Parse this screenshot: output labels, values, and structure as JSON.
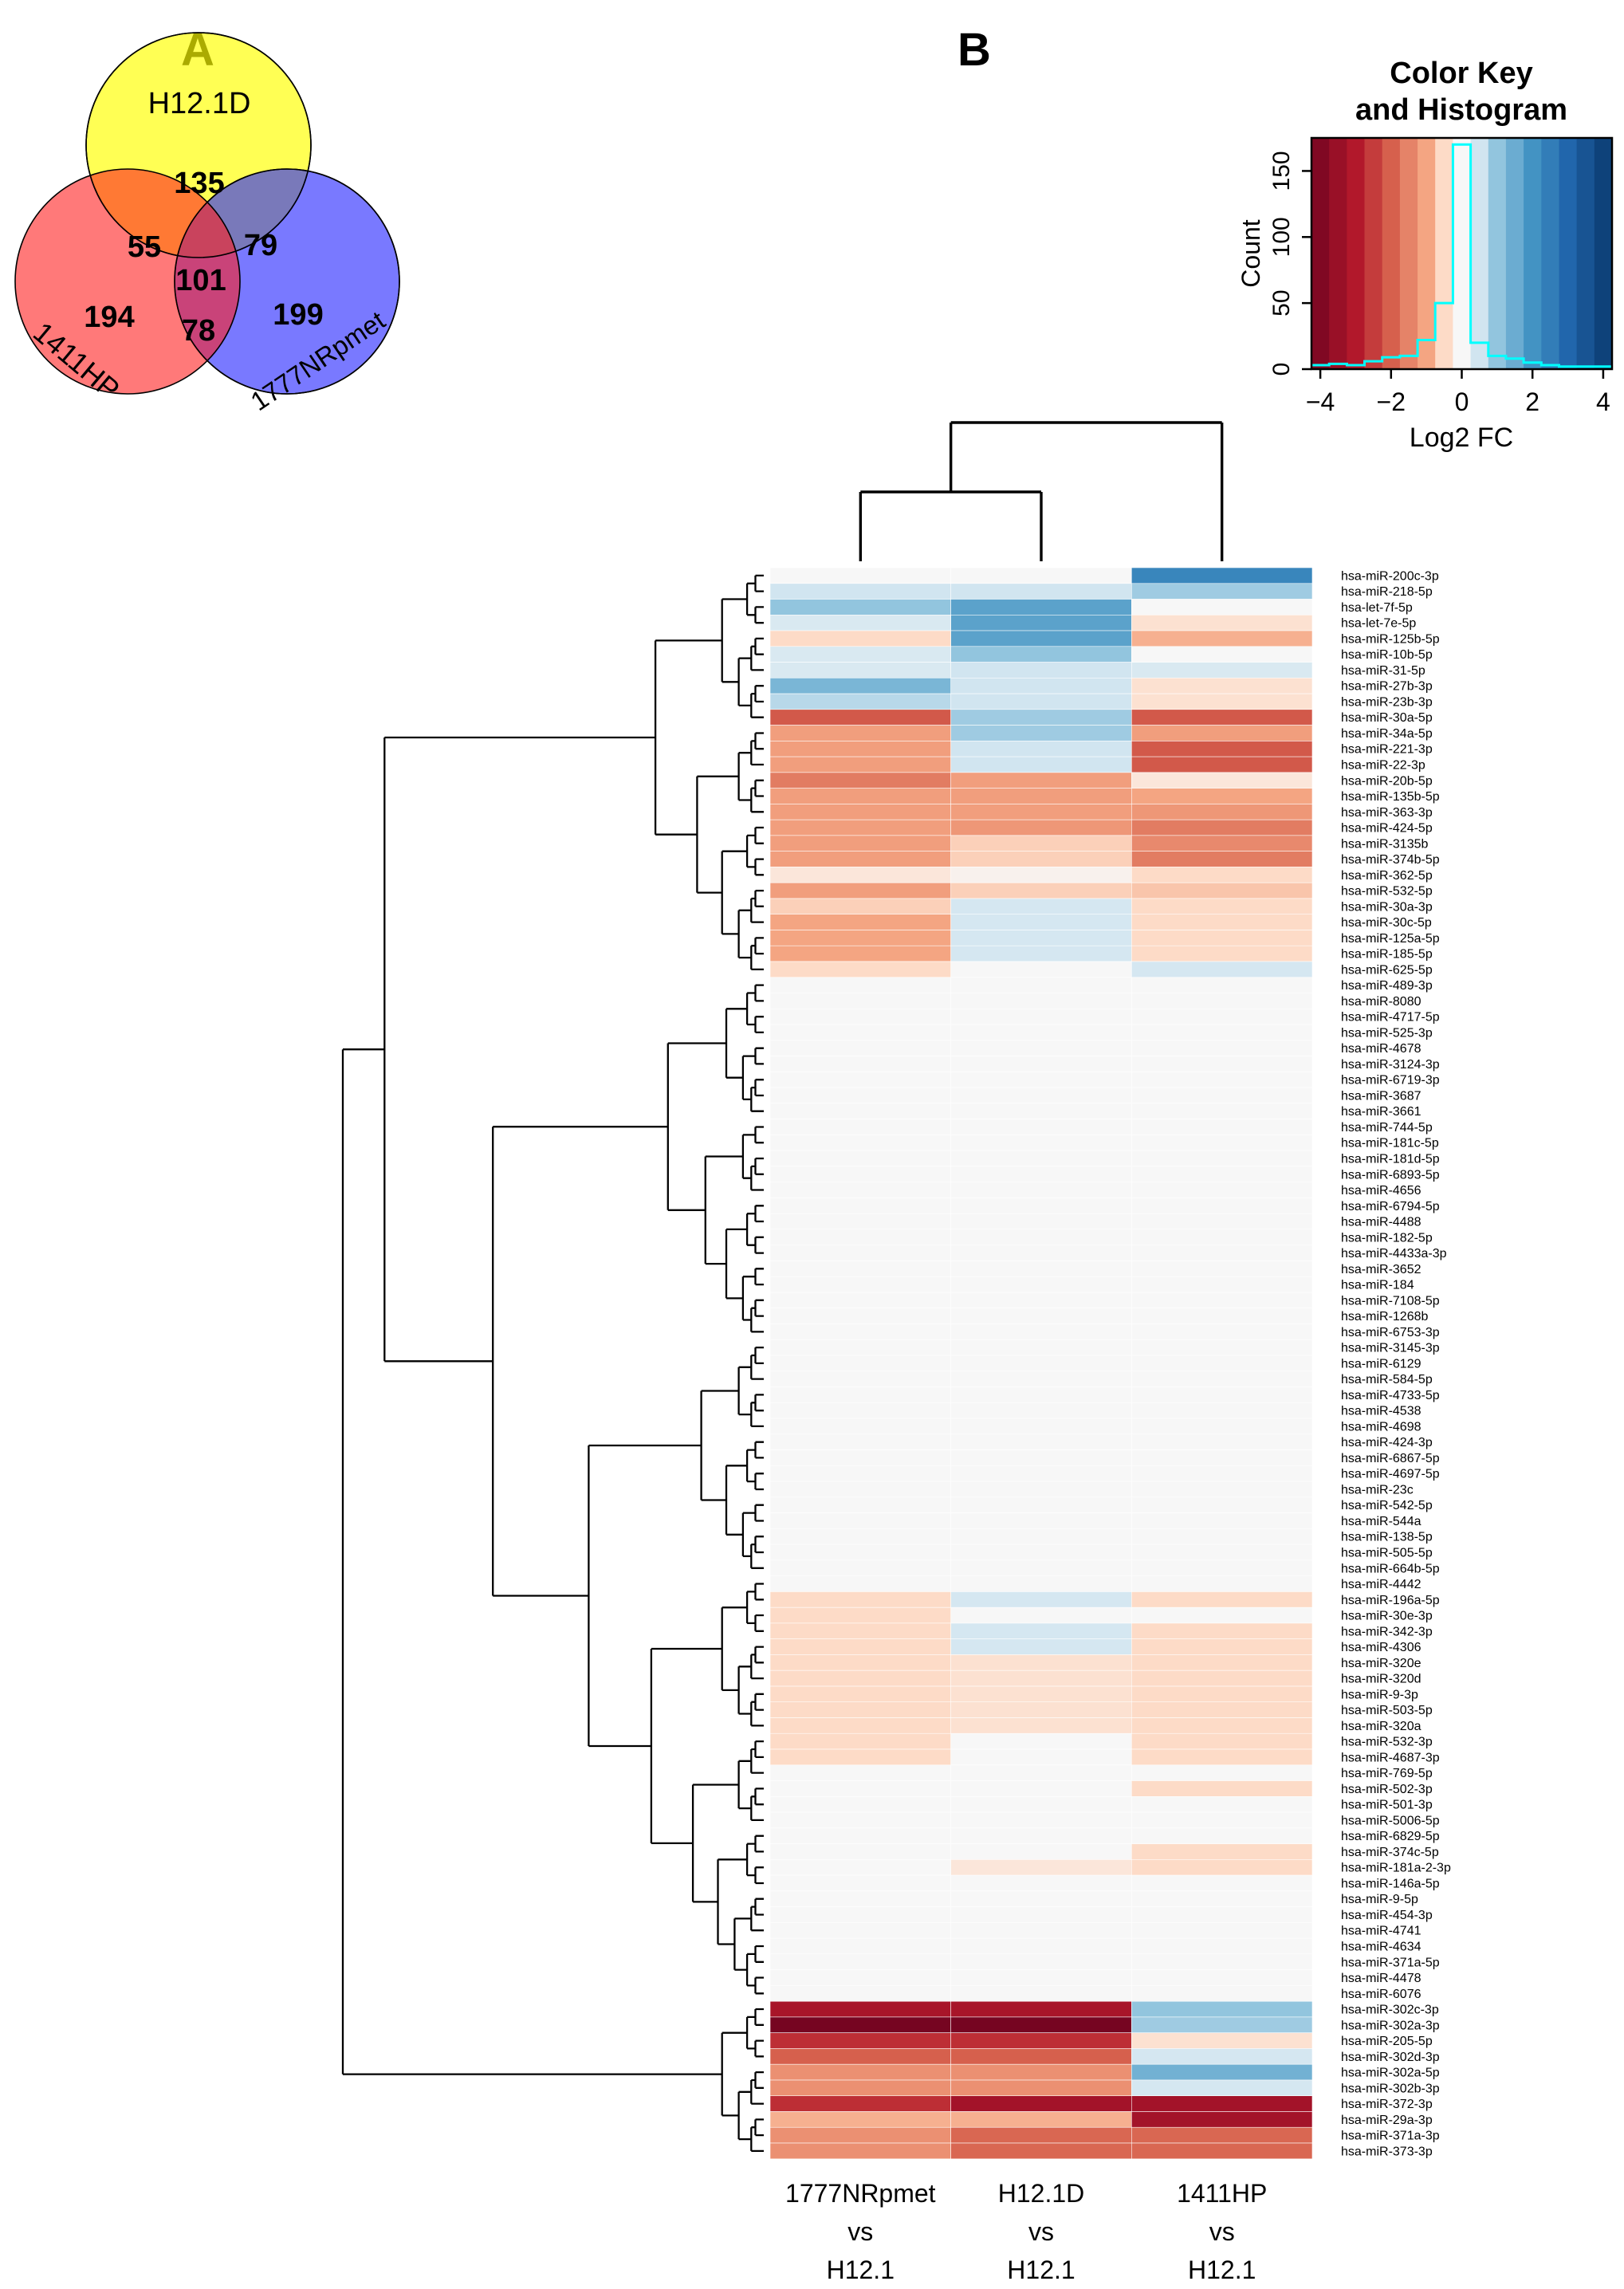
{
  "panels": {
    "a": "A",
    "b": "B"
  },
  "color_key": {
    "title": [
      "Color Key",
      "and Histogram"
    ],
    "ylabel": "Count",
    "xlabel": "Log2 FC",
    "yticks": [
      0,
      50,
      100,
      150
    ],
    "xticks": [
      -4,
      -2,
      0,
      2,
      4
    ],
    "ymax": 175,
    "xrange": [
      -4.25,
      4.25
    ],
    "hist_counts": [
      3,
      4,
      3,
      6,
      9,
      10,
      22,
      50,
      170,
      20,
      10,
      8,
      5,
      3,
      2,
      2,
      2
    ],
    "line_color": "#00FFFF"
  },
  "chart_data": [
    {
      "type": "venn",
      "panel": "A",
      "sets": [
        {
          "name": "H12.1D",
          "color": "#FFFF00",
          "unique": 135
        },
        {
          "name": "1411HP",
          "color": "#FF2020",
          "unique": 194
        },
        {
          "name": "1777NRpmet",
          "color": "#1F1FFF",
          "unique": 199
        }
      ],
      "overlaps": {
        "h12d_1411hp": 55,
        "h12d_1777": 79,
        "x1411hp_1777": 78,
        "all3": 101
      }
    },
    {
      "type": "heatmap",
      "panel": "B",
      "value_label": "Log2 FC",
      "value_range": [
        -4.5,
        4.5
      ],
      "legend_position": "top-right",
      "columns": [
        "1777NRpmet vs H12.1",
        "H12.1D vs H12.1",
        "1411HP vs H12.1"
      ],
      "column_label_lines": [
        [
          "1777NRpmet",
          "vs",
          "H12.1"
        ],
        [
          "H12.1D",
          "vs",
          "H12.1"
        ],
        [
          "1411HP",
          "vs",
          "H12.1"
        ]
      ],
      "palette": [
        [
          -4.5,
          "#67001f"
        ],
        [
          -3,
          "#b2182b"
        ],
        [
          -2,
          "#d6604d"
        ],
        [
          -1,
          "#f4a582"
        ],
        [
          -0.5,
          "#fddbc7"
        ],
        [
          0,
          "#f7f7f7"
        ],
        [
          0.5,
          "#d1e5f0"
        ],
        [
          1,
          "#92c5de"
        ],
        [
          2,
          "#4393c3"
        ],
        [
          3,
          "#2166ac"
        ],
        [
          4.5,
          "#053061"
        ]
      ],
      "rows": [
        {
          "label": "hsa-miR-200c-3p",
          "v": [
            0,
            0,
            2.3
          ]
        },
        {
          "label": "hsa-miR-218-5p",
          "v": [
            0.5,
            0.5,
            0.9
          ]
        },
        {
          "label": "hsa-let-7f-5p",
          "v": [
            1,
            1.7,
            0
          ]
        },
        {
          "label": "hsa-let-7e-5p",
          "v": [
            0.4,
            1.7,
            -0.4
          ]
        },
        {
          "label": "hsa-miR-125b-5p",
          "v": [
            -0.5,
            1.7,
            -0.9
          ]
        },
        {
          "label": "hsa-miR-10b-5p",
          "v": [
            0.4,
            1,
            0
          ]
        },
        {
          "label": "hsa-miR-31-5p",
          "v": [
            0.4,
            0.5,
            0.4
          ]
        },
        {
          "label": "hsa-miR-27b-3p",
          "v": [
            1.3,
            0.5,
            -0.4
          ]
        },
        {
          "label": "hsa-miR-23b-3p",
          "v": [
            0.7,
            0.5,
            -0.4
          ]
        },
        {
          "label": "hsa-miR-30a-5p",
          "v": [
            -2.1,
            0.9,
            -2.1
          ]
        },
        {
          "label": "hsa-miR-34a-5p",
          "v": [
            -1.1,
            0.9,
            -1.1
          ]
        },
        {
          "label": "hsa-miR-221-3p",
          "v": [
            -1.1,
            0.5,
            -2.1
          ]
        },
        {
          "label": "hsa-miR-22-3p",
          "v": [
            -1.1,
            0.5,
            -2.1
          ]
        },
        {
          "label": "hsa-miR-20b-5p",
          "v": [
            -1.6,
            -1.1,
            -0.3
          ]
        },
        {
          "label": "hsa-miR-135b-5p",
          "v": [
            -1.1,
            -1.1,
            -1
          ]
        },
        {
          "label": "hsa-miR-363-3p",
          "v": [
            -1.1,
            -1.1,
            -1.2
          ]
        },
        {
          "label": "hsa-miR-424-5p",
          "v": [
            -1.1,
            -1.2,
            -1.6
          ]
        },
        {
          "label": "hsa-miR-3135b",
          "v": [
            -1.1,
            -0.6,
            -1.4
          ]
        },
        {
          "label": "hsa-miR-374b-5p",
          "v": [
            -1.1,
            -0.6,
            -1.6
          ]
        },
        {
          "label": "hsa-miR-362-5p",
          "v": [
            -0.3,
            -0.1,
            -0.5
          ]
        },
        {
          "label": "hsa-miR-532-5p",
          "v": [
            -1.1,
            -0.6,
            -0.7
          ]
        },
        {
          "label": "hsa-miR-30a-3p",
          "v": [
            -0.6,
            0.45,
            -0.5
          ]
        },
        {
          "label": "hsa-miR-30c-5p",
          "v": [
            -1,
            0.45,
            -0.5
          ]
        },
        {
          "label": "hsa-miR-125a-5p",
          "v": [
            -1,
            0.45,
            -0.5
          ]
        },
        {
          "label": "hsa-miR-185-5p",
          "v": [
            -1,
            0.45,
            -0.5
          ]
        },
        {
          "label": "hsa-miR-625-5p",
          "v": [
            -0.5,
            0,
            0.45
          ]
        },
        {
          "label": "hsa-miR-489-3p",
          "v": [
            0,
            0,
            0
          ]
        },
        {
          "label": "hsa-miR-8080",
          "v": [
            0,
            0,
            0
          ]
        },
        {
          "label": "hsa-miR-4717-5p",
          "v": [
            0,
            0,
            0
          ]
        },
        {
          "label": "hsa-miR-525-3p",
          "v": [
            0,
            0,
            0
          ]
        },
        {
          "label": "hsa-miR-4678",
          "v": [
            0,
            0,
            0
          ]
        },
        {
          "label": "hsa-miR-3124-3p",
          "v": [
            0,
            0,
            0
          ]
        },
        {
          "label": "hsa-miR-6719-3p",
          "v": [
            0,
            0,
            0
          ]
        },
        {
          "label": "hsa-miR-3687",
          "v": [
            0,
            0,
            0
          ]
        },
        {
          "label": "hsa-miR-3661",
          "v": [
            0,
            0,
            0
          ]
        },
        {
          "label": "hsa-miR-744-5p",
          "v": [
            0,
            0,
            0
          ]
        },
        {
          "label": "hsa-miR-181c-5p",
          "v": [
            0,
            0,
            0
          ]
        },
        {
          "label": "hsa-miR-181d-5p",
          "v": [
            0,
            0,
            0
          ]
        },
        {
          "label": "hsa-miR-6893-5p",
          "v": [
            0,
            0,
            0
          ]
        },
        {
          "label": "hsa-miR-4656",
          "v": [
            0,
            0,
            0
          ]
        },
        {
          "label": "hsa-miR-6794-5p",
          "v": [
            0,
            0,
            0
          ]
        },
        {
          "label": "hsa-miR-4488",
          "v": [
            0,
            0,
            0
          ]
        },
        {
          "label": "hsa-miR-182-5p",
          "v": [
            0,
            0,
            0
          ]
        },
        {
          "label": "hsa-miR-4433a-3p",
          "v": [
            0,
            0,
            0
          ]
        },
        {
          "label": "hsa-miR-3652",
          "v": [
            0,
            0,
            0
          ]
        },
        {
          "label": "hsa-miR-184",
          "v": [
            0,
            0,
            0
          ]
        },
        {
          "label": "hsa-miR-7108-5p",
          "v": [
            0,
            0,
            0
          ]
        },
        {
          "label": "hsa-miR-1268b",
          "v": [
            0,
            0,
            0
          ]
        },
        {
          "label": "hsa-miR-6753-3p",
          "v": [
            0,
            0,
            0
          ]
        },
        {
          "label": "hsa-miR-3145-3p",
          "v": [
            0,
            0,
            0
          ]
        },
        {
          "label": "hsa-miR-6129",
          "v": [
            0,
            0,
            0
          ]
        },
        {
          "label": "hsa-miR-584-5p",
          "v": [
            0,
            0,
            0
          ]
        },
        {
          "label": "hsa-miR-4733-5p",
          "v": [
            0,
            0,
            0
          ]
        },
        {
          "label": "hsa-miR-4538",
          "v": [
            0,
            0,
            0
          ]
        },
        {
          "label": "hsa-miR-4698",
          "v": [
            0,
            0,
            0
          ]
        },
        {
          "label": "hsa-miR-424-3p",
          "v": [
            0,
            0,
            0
          ]
        },
        {
          "label": "hsa-miR-6867-5p",
          "v": [
            0,
            0,
            0
          ]
        },
        {
          "label": "hsa-miR-4697-5p",
          "v": [
            0,
            0,
            0
          ]
        },
        {
          "label": "hsa-miR-23c",
          "v": [
            0,
            0,
            0
          ]
        },
        {
          "label": "hsa-miR-542-5p",
          "v": [
            0,
            0,
            0
          ]
        },
        {
          "label": "hsa-miR-544a",
          "v": [
            0,
            0,
            0
          ]
        },
        {
          "label": "hsa-miR-138-5p",
          "v": [
            0,
            0,
            0
          ]
        },
        {
          "label": "hsa-miR-505-5p",
          "v": [
            0,
            0,
            0
          ]
        },
        {
          "label": "hsa-miR-664b-5p",
          "v": [
            0,
            0,
            0
          ]
        },
        {
          "label": "hsa-miR-4442",
          "v": [
            0,
            0,
            0
          ]
        },
        {
          "label": "hsa-miR-196a-5p",
          "v": [
            -0.5,
            0.45,
            -0.5
          ]
        },
        {
          "label": "hsa-miR-30e-3p",
          "v": [
            -0.5,
            0,
            0
          ]
        },
        {
          "label": "hsa-miR-342-3p",
          "v": [
            -0.5,
            0.45,
            -0.5
          ]
        },
        {
          "label": "hsa-miR-4306",
          "v": [
            -0.5,
            0.45,
            -0.5
          ]
        },
        {
          "label": "hsa-miR-320e",
          "v": [
            -0.5,
            -0.4,
            -0.5
          ]
        },
        {
          "label": "hsa-miR-320d",
          "v": [
            -0.5,
            -0.4,
            -0.5
          ]
        },
        {
          "label": "hsa-miR-9-3p",
          "v": [
            -0.5,
            -0.4,
            -0.5
          ]
        },
        {
          "label": "hsa-miR-503-5p",
          "v": [
            -0.5,
            -0.4,
            -0.5
          ]
        },
        {
          "label": "hsa-miR-320a",
          "v": [
            -0.5,
            -0.4,
            -0.5
          ]
        },
        {
          "label": "hsa-miR-532-3p",
          "v": [
            -0.5,
            0,
            -0.5
          ]
        },
        {
          "label": "hsa-miR-4687-3p",
          "v": [
            -0.5,
            0,
            -0.5
          ]
        },
        {
          "label": "hsa-miR-769-5p",
          "v": [
            0,
            0,
            0
          ]
        },
        {
          "label": "hsa-miR-502-3p",
          "v": [
            0,
            0,
            -0.5
          ]
        },
        {
          "label": "hsa-miR-501-3p",
          "v": [
            0,
            0,
            0
          ]
        },
        {
          "label": "hsa-miR-5006-5p",
          "v": [
            0,
            0,
            0
          ]
        },
        {
          "label": "hsa-miR-6829-5p",
          "v": [
            0,
            0,
            0
          ]
        },
        {
          "label": "hsa-miR-374c-5p",
          "v": [
            0,
            0,
            -0.5
          ]
        },
        {
          "label": "hsa-miR-181a-2-3p",
          "v": [
            0,
            -0.3,
            -0.5
          ]
        },
        {
          "label": "hsa-miR-146a-5p",
          "v": [
            0,
            0,
            0
          ]
        },
        {
          "label": "hsa-miR-9-5p",
          "v": [
            0,
            0,
            0
          ]
        },
        {
          "label": "hsa-miR-454-3p",
          "v": [
            0,
            0,
            0
          ]
        },
        {
          "label": "hsa-miR-4741",
          "v": [
            0,
            0,
            0
          ]
        },
        {
          "label": "hsa-miR-4634",
          "v": [
            0,
            0,
            0
          ]
        },
        {
          "label": "hsa-miR-371a-5p",
          "v": [
            0,
            0,
            0
          ]
        },
        {
          "label": "hsa-miR-4478",
          "v": [
            0,
            0,
            0
          ]
        },
        {
          "label": "hsa-miR-6076",
          "v": [
            0,
            0,
            0
          ]
        },
        {
          "label": "hsa-miR-302c-3p",
          "v": [
            -3.2,
            -3.2,
            1
          ]
        },
        {
          "label": "hsa-miR-302a-3p",
          "v": [
            -4.2,
            -4.2,
            0.9
          ]
        },
        {
          "label": "hsa-miR-205-5p",
          "v": [
            -2.7,
            -2.7,
            -0.4
          ]
        },
        {
          "label": "hsa-miR-302d-3p",
          "v": [
            -2,
            -2,
            0.45
          ]
        },
        {
          "label": "hsa-miR-302a-5p",
          "v": [
            -1.3,
            -1.3,
            1.4
          ]
        },
        {
          "label": "hsa-miR-302b-3p",
          "v": [
            -1.3,
            -1.3,
            0.45
          ]
        },
        {
          "label": "hsa-miR-372-3p",
          "v": [
            -2.7,
            -3.3,
            -3.3
          ]
        },
        {
          "label": "hsa-miR-29a-3p",
          "v": [
            -0.9,
            -0.9,
            -3.3
          ]
        },
        {
          "label": "hsa-miR-371a-3p",
          "v": [
            -1.3,
            -1.9,
            -1.9
          ]
        },
        {
          "label": "hsa-miR-373-3p",
          "v": [
            -1.3,
            -1.9,
            -1.9
          ]
        }
      ]
    }
  ]
}
